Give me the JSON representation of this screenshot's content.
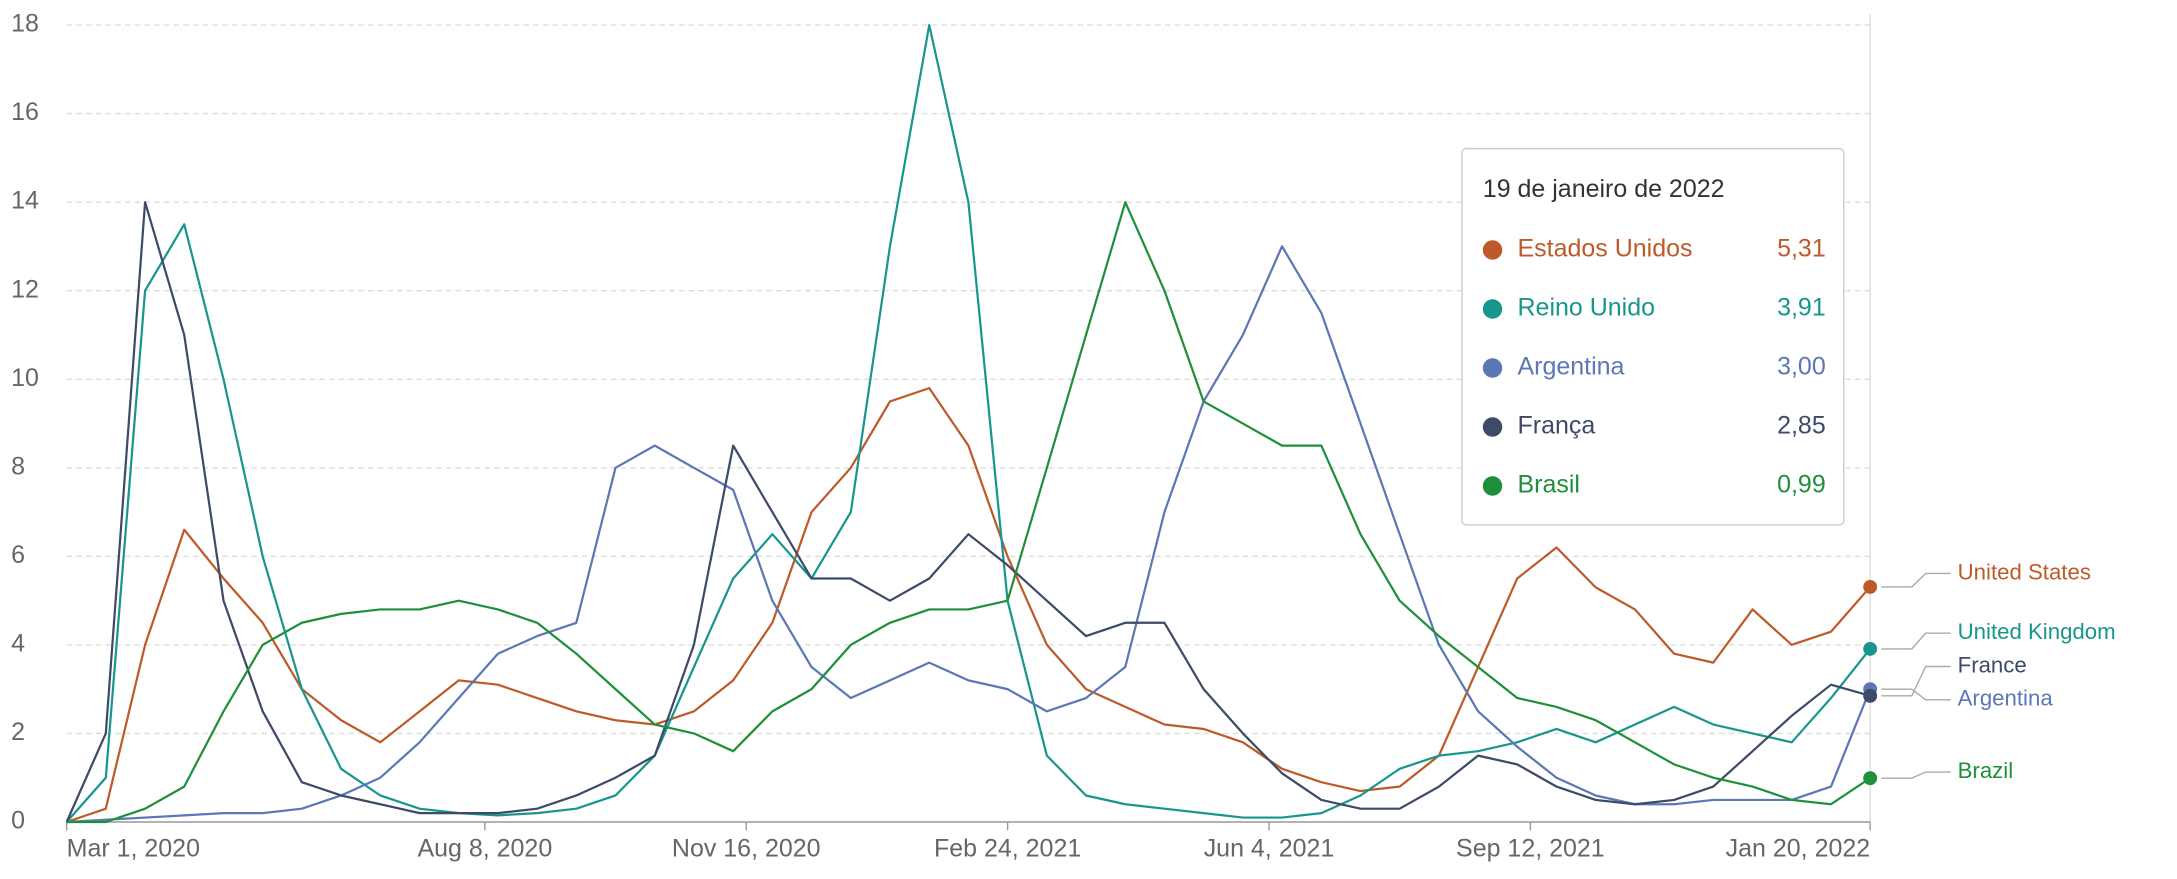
{
  "chart_data": {
    "type": "line",
    "x": [
      "2020-03-01",
      "2020-03-16",
      "2020-03-31",
      "2020-04-15",
      "2020-04-30",
      "2020-05-15",
      "2020-05-30",
      "2020-06-14",
      "2020-06-29",
      "2020-07-14",
      "2020-07-29",
      "2020-08-13",
      "2020-08-28",
      "2020-09-12",
      "2020-09-27",
      "2020-10-12",
      "2020-10-27",
      "2020-11-11",
      "2020-11-26",
      "2020-12-11",
      "2020-12-26",
      "2021-01-10",
      "2021-01-25",
      "2021-02-09",
      "2021-02-24",
      "2021-03-11",
      "2021-03-26",
      "2021-04-10",
      "2021-04-25",
      "2021-05-10",
      "2021-05-25",
      "2021-06-09",
      "2021-06-24",
      "2021-07-09",
      "2021-07-24",
      "2021-08-08",
      "2021-08-23",
      "2021-09-07",
      "2021-09-22",
      "2021-10-07",
      "2021-10-22",
      "2021-11-06",
      "2021-11-21",
      "2021-12-06",
      "2021-12-21",
      "2022-01-05",
      "2022-01-20"
    ],
    "series": [
      {
        "name": "Estados Unidos",
        "label": "United States",
        "color": "#be5a2a",
        "values": [
          0,
          0.3,
          4,
          6.6,
          5.5,
          4.5,
          3,
          2.3,
          1.8,
          2.5,
          3.2,
          3.1,
          2.8,
          2.5,
          2.3,
          2.2,
          2.5,
          3.2,
          4.5,
          7,
          8,
          9.5,
          9.8,
          8.5,
          6,
          4,
          3,
          2.6,
          2.2,
          2.1,
          1.8,
          1.2,
          0.9,
          0.7,
          0.8,
          1.5,
          3.5,
          5.5,
          6.2,
          5.3,
          4.8,
          3.8,
          3.6,
          4.8,
          4,
          4.3,
          5.31
        ]
      },
      {
        "name": "Reino Unido",
        "label": "United Kingdom",
        "color": "#18968e",
        "values": [
          0,
          1,
          12,
          13.5,
          10,
          6,
          3,
          1.2,
          0.6,
          0.3,
          0.2,
          0.15,
          0.2,
          0.3,
          0.6,
          1.5,
          3.5,
          5.5,
          6.5,
          5.5,
          7,
          13,
          18,
          14,
          5,
          1.5,
          0.6,
          0.4,
          0.3,
          0.2,
          0.1,
          0.1,
          0.2,
          0.6,
          1.2,
          1.5,
          1.6,
          1.8,
          2.1,
          1.8,
          2.2,
          2.6,
          2.2,
          2,
          1.8,
          2.8,
          3.91
        ]
      },
      {
        "name": "Argentina",
        "label": "Argentina",
        "color": "#5c77b6",
        "values": [
          0,
          0.05,
          0.1,
          0.15,
          0.2,
          0.2,
          0.3,
          0.6,
          1,
          1.8,
          2.8,
          3.8,
          4.2,
          4.5,
          8,
          8.5,
          8,
          7.5,
          5,
          3.5,
          2.8,
          3.2,
          3.6,
          3.2,
          3,
          2.5,
          2.8,
          3.5,
          7,
          9.5,
          11,
          13,
          11.5,
          9,
          6.5,
          4,
          2.5,
          1.7,
          1,
          0.6,
          0.4,
          0.4,
          0.5,
          0.5,
          0.5,
          0.8,
          3
        ]
      },
      {
        "name": "França",
        "label": "France",
        "color": "#3d4a68",
        "values": [
          0,
          2,
          14,
          11,
          5,
          2.5,
          0.9,
          0.6,
          0.4,
          0.2,
          0.2,
          0.2,
          0.3,
          0.6,
          1,
          1.5,
          4,
          8.5,
          7,
          5.5,
          5.5,
          5,
          5.5,
          6.5,
          5.8,
          5,
          4.2,
          4.5,
          4.5,
          3,
          2,
          1.1,
          0.5,
          0.3,
          0.3,
          0.8,
          1.5,
          1.3,
          0.8,
          0.5,
          0.4,
          0.5,
          0.8,
          1.6,
          2.4,
          3.1,
          2.85
        ]
      },
      {
        "name": "Brasil",
        "label": "Brazil",
        "color": "#1e8f3a",
        "values": [
          0,
          0,
          0.3,
          0.8,
          2.5,
          4,
          4.5,
          4.7,
          4.8,
          4.8,
          5,
          4.8,
          4.5,
          3.8,
          3,
          2.2,
          2,
          1.6,
          2.5,
          3,
          4,
          4.5,
          4.8,
          4.8,
          5,
          8,
          11,
          14,
          12,
          9.5,
          9,
          8.5,
          8.5,
          6.5,
          5,
          4.2,
          3.5,
          2.8,
          2.6,
          2.3,
          1.8,
          1.3,
          1,
          0.8,
          0.5,
          0.4,
          0.99
        ]
      }
    ],
    "xlim": [
      "2020-03-01",
      "2022-01-20"
    ],
    "xticks": [
      {
        "value": "2020-03-01",
        "label": "Mar 1, 2020"
      },
      {
        "value": "2020-08-08",
        "label": "Aug 8, 2020"
      },
      {
        "value": "2020-11-16",
        "label": "Nov 16, 2020"
      },
      {
        "value": "2021-02-24",
        "label": "Feb 24, 2021"
      },
      {
        "value": "2021-06-04",
        "label": "Jun 4, 2021"
      },
      {
        "value": "2021-09-12",
        "label": "Sep 12, 2021"
      },
      {
        "value": "2022-01-20",
        "label": "Jan 20, 2022"
      }
    ],
    "ylim": [
      0,
      18
    ],
    "yticks": [
      0,
      2,
      4,
      6,
      8,
      10,
      12,
      14,
      16,
      18
    ],
    "grid": true,
    "tooltip": {
      "title": "19 de janeiro de 2022",
      "values": [
        5.31,
        3.91,
        3.0,
        2.85,
        0.99
      ],
      "value_labels": [
        "5,31",
        "3,91",
        "3,00",
        "2,85",
        "0,99"
      ]
    }
  }
}
